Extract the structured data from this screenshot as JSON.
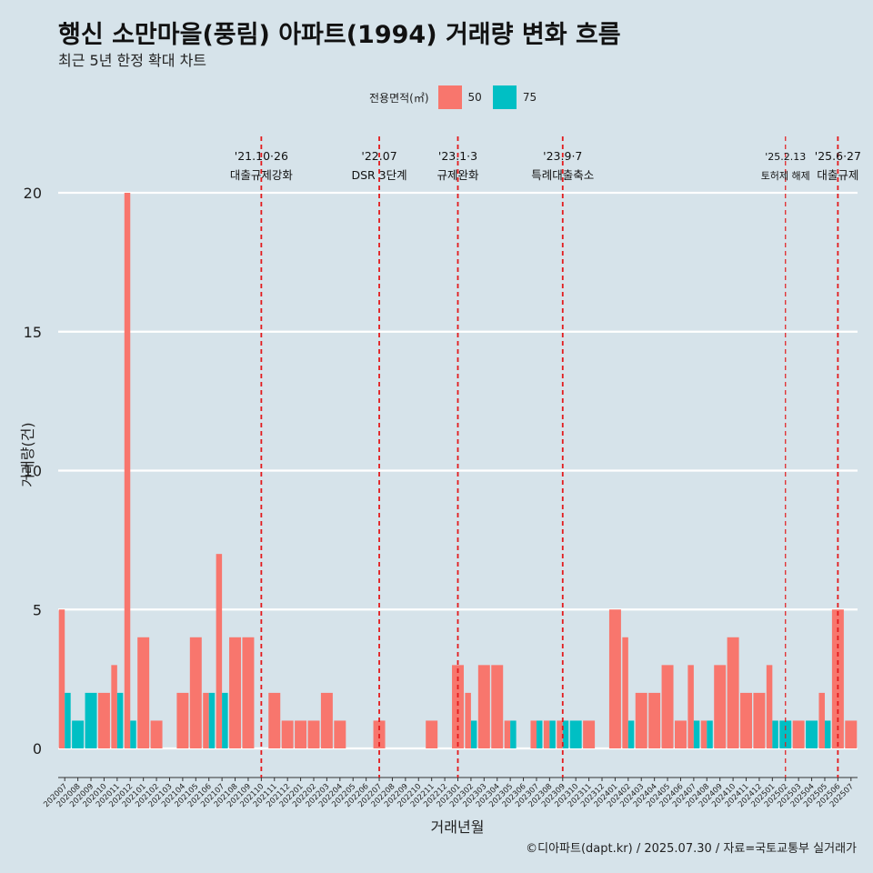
{
  "title": "행신 소만마을(풍림) 아파트(1994) 거래량 변화 흐름",
  "subtitle": "최근 5년 한정 확대 차트",
  "caption": "©디아파트(dapt.kr) / 2025.07.30 / 자료=국토교통부 실거래가",
  "legend": {
    "title": "전용면적(㎡)",
    "items": [
      {
        "label": "50",
        "color": "#f8766d"
      },
      {
        "label": "75",
        "color": "#00bfc4"
      }
    ]
  },
  "chart_data": {
    "type": "bar",
    "stacking": "dodge",
    "xlabel": "거래년월",
    "ylabel": "거래량(건)",
    "ylim": [
      -1,
      22
    ],
    "yticks": [
      0,
      5,
      10,
      15,
      20
    ],
    "grid": "horizontal",
    "legend_position": "top",
    "categories": [
      "202007",
      "202008",
      "202009",
      "202010",
      "202011",
      "202012",
      "202101",
      "202102",
      "202103",
      "202104",
      "202105",
      "202106",
      "202107",
      "202108",
      "202109",
      "202110",
      "202111",
      "202112",
      "202201",
      "202202",
      "202203",
      "202204",
      "202205",
      "202206",
      "202207",
      "202208",
      "202209",
      "202210",
      "202211",
      "202212",
      "202301",
      "202302",
      "202303",
      "202304",
      "202305",
      "202306",
      "202307",
      "202308",
      "202309",
      "202310",
      "202311",
      "202312",
      "202401",
      "202402",
      "202403",
      "202404",
      "202405",
      "202406",
      "202407",
      "202408",
      "202409",
      "202410",
      "202411",
      "202412",
      "202501",
      "202502",
      "202503",
      "202504",
      "202505",
      "202506",
      "202507"
    ],
    "series": [
      {
        "name": "50",
        "color": "#f8766d",
        "values": [
          5,
          0,
          0,
          2,
          3,
          20,
          4,
          1,
          0,
          2,
          4,
          2,
          7,
          4,
          4,
          0,
          2,
          1,
          1,
          1,
          2,
          1,
          0,
          0,
          1,
          0,
          0,
          0,
          1,
          0,
          3,
          2,
          3,
          3,
          1,
          0,
          1,
          1,
          1,
          0,
          1,
          0,
          5,
          4,
          2,
          2,
          3,
          1,
          3,
          1,
          3,
          4,
          2,
          2,
          3,
          0,
          1,
          0,
          2,
          5,
          1
        ]
      },
      {
        "name": "75",
        "color": "#00bfc4",
        "values": [
          2,
          1,
          2,
          0,
          2,
          1,
          0,
          0,
          0,
          0,
          0,
          2,
          2,
          0,
          0,
          0,
          0,
          0,
          0,
          0,
          0,
          0,
          0,
          0,
          0,
          0,
          0,
          0,
          0,
          0,
          0,
          1,
          0,
          0,
          1,
          0,
          1,
          1,
          1,
          1,
          0,
          0,
          0,
          1,
          0,
          0,
          0,
          0,
          1,
          1,
          0,
          0,
          0,
          0,
          1,
          1,
          0,
          1,
          1,
          0,
          0
        ]
      }
    ],
    "annotations": [
      {
        "at": "202110",
        "line1": "'21.10·26",
        "line2": "대출규제강화",
        "small": false
      },
      {
        "at": "202207",
        "line1": "'22.07",
        "line2": "DSR 3단계",
        "small": false
      },
      {
        "at": "202301",
        "line1": "'23.1·3",
        "line2": "규제완화",
        "small": false
      },
      {
        "at": "202309",
        "line1": "'23.9·7",
        "line2": "특례대출축소",
        "small": false
      },
      {
        "at": "202502",
        "line1": "'25.2.13",
        "line2": "토허제 해제",
        "small": true
      },
      {
        "at": "202506",
        "line1": "'25.6·27",
        "line2": "대출규제",
        "small": false
      }
    ]
  }
}
